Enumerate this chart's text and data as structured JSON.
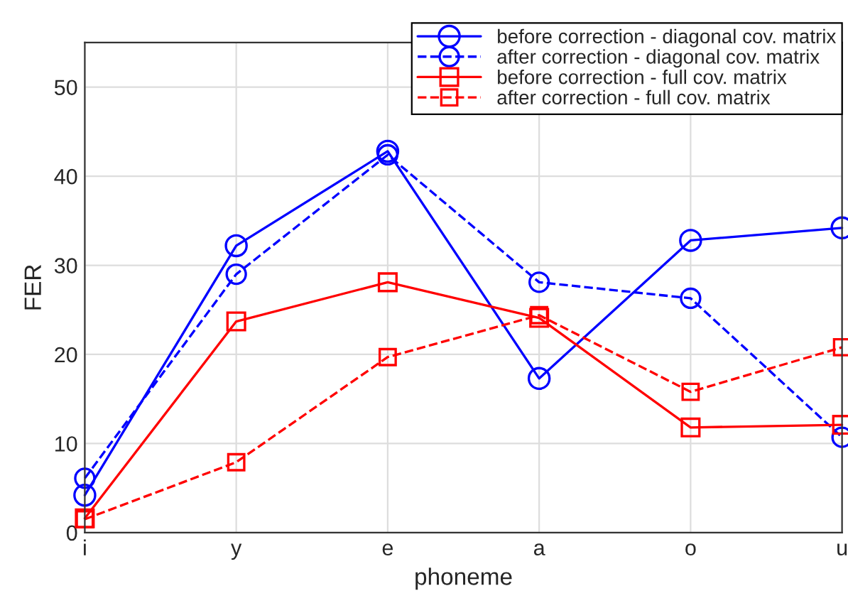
{
  "chart_data": {
    "type": "line",
    "xlabel": "phoneme",
    "ylabel": "FER",
    "categories": [
      "i",
      "y",
      "e",
      "a",
      "o",
      "u"
    ],
    "series": [
      {
        "name": "before correction - diagonal cov. matrix",
        "color": "#0000ff",
        "marker": "circle",
        "line_style": "solid",
        "values": [
          4.2,
          32.2,
          42.8,
          17.3,
          32.8,
          34.2
        ]
      },
      {
        "name": "after correction - diagonal cov. matrix",
        "color": "#0000ff",
        "marker": "circle",
        "line_style": "dashed",
        "values": [
          6.1,
          29.0,
          42.4,
          28.1,
          26.3,
          10.7
        ]
      },
      {
        "name": "before correction - full cov. matrix",
        "color": "#ff0000",
        "marker": "square",
        "line_style": "solid",
        "values": [
          1.6,
          23.7,
          28.1,
          24.1,
          11.8,
          12.1
        ]
      },
      {
        "name": "after correction - full cov. matrix",
        "color": "#ff0000",
        "marker": "square",
        "line_style": "dashed",
        "values": [
          1.5,
          7.9,
          19.7,
          24.4,
          15.8,
          20.8
        ]
      }
    ],
    "ylim": [
      0,
      55
    ],
    "yticks": [
      0,
      10,
      20,
      30,
      40,
      50
    ],
    "grid": true,
    "legend": "top right"
  }
}
